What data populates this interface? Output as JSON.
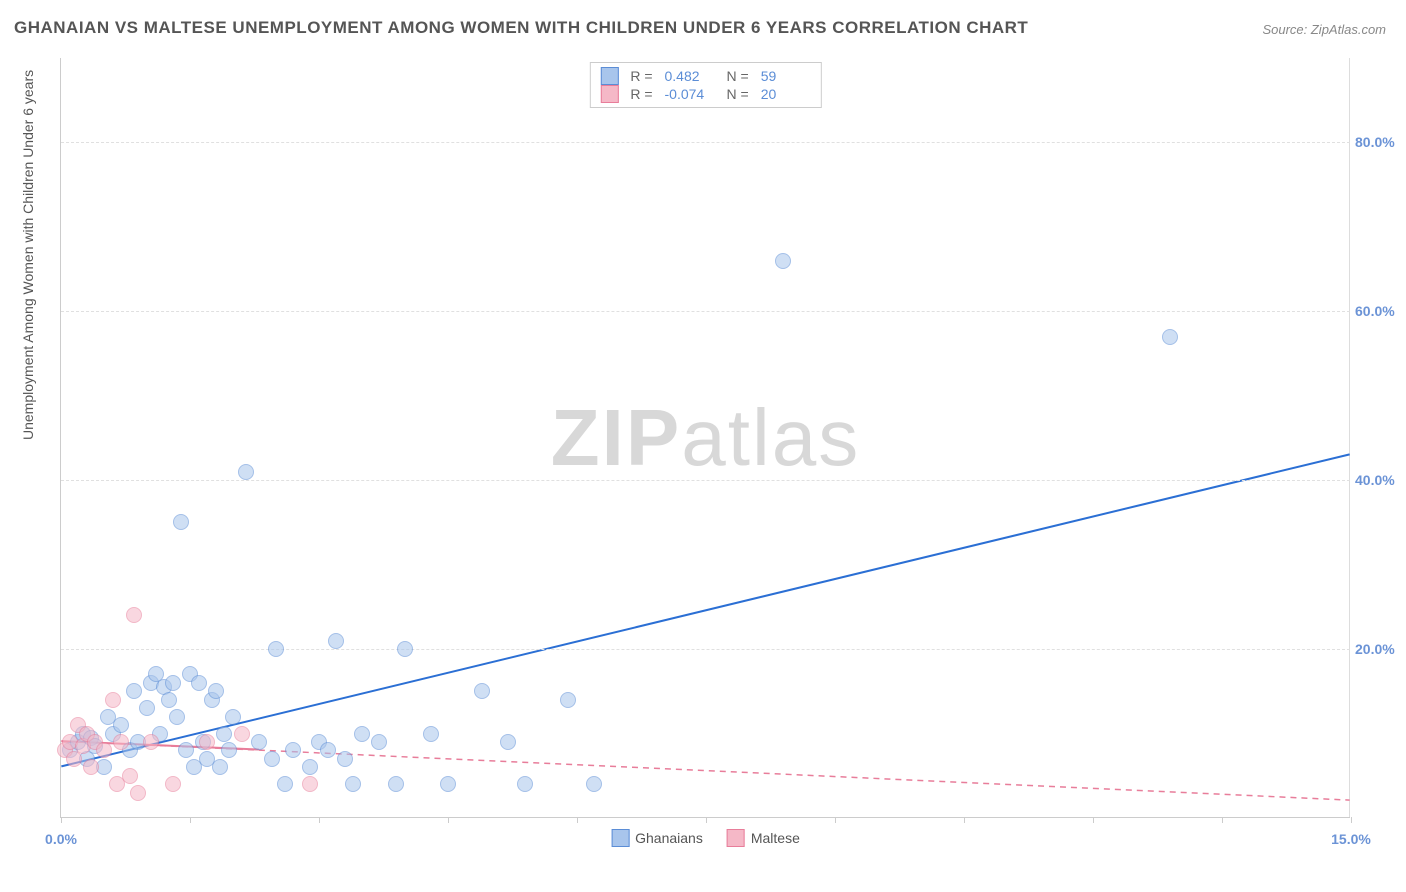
{
  "title": "GHANAIAN VS MALTESE UNEMPLOYMENT AMONG WOMEN WITH CHILDREN UNDER 6 YEARS CORRELATION CHART",
  "source": "Source: ZipAtlas.com",
  "y_axis_label": "Unemployment Among Women with Children Under 6 years",
  "watermark_bold": "ZIP",
  "watermark_light": "atlas",
  "chart": {
    "type": "scatter",
    "xlim": [
      0,
      15
    ],
    "ylim": [
      0,
      90
    ],
    "x_ticks": [
      0,
      1.5,
      3,
      4.5,
      6,
      7.5,
      9,
      10.5,
      12,
      13.5,
      15
    ],
    "x_tick_labels": {
      "0": "0.0%",
      "15": "15.0%"
    },
    "y_ticks": [
      20,
      40,
      60,
      80
    ],
    "y_tick_labels": {
      "20": "20.0%",
      "40": "40.0%",
      "60": "60.0%",
      "80": "80.0%"
    },
    "background_color": "#ffffff",
    "grid_color": "#e0e0e0",
    "axis_color": "#cccccc",
    "tick_label_color": "#6b93d6",
    "point_radius": 8,
    "point_opacity": 0.55,
    "series": [
      {
        "name": "Ghanaians",
        "fill": "#a8c5ec",
        "stroke": "#5b8dd6",
        "R": "0.482",
        "N": "59",
        "trend": {
          "x1": 0,
          "y1": 6,
          "x2": 15,
          "y2": 43,
          "color": "#2b6fd4",
          "width": 2,
          "dash": "none"
        },
        "points": [
          [
            0.1,
            8
          ],
          [
            0.2,
            9
          ],
          [
            0.25,
            10
          ],
          [
            0.3,
            7
          ],
          [
            0.35,
            9.5
          ],
          [
            0.4,
            8.5
          ],
          [
            0.5,
            6
          ],
          [
            0.55,
            12
          ],
          [
            0.6,
            10
          ],
          [
            0.7,
            11
          ],
          [
            0.8,
            8
          ],
          [
            0.85,
            15
          ],
          [
            0.9,
            9
          ],
          [
            1.0,
            13
          ],
          [
            1.05,
            16
          ],
          [
            1.1,
            17
          ],
          [
            1.15,
            10
          ],
          [
            1.2,
            15.5
          ],
          [
            1.25,
            14
          ],
          [
            1.3,
            16
          ],
          [
            1.35,
            12
          ],
          [
            1.4,
            35
          ],
          [
            1.45,
            8
          ],
          [
            1.5,
            17
          ],
          [
            1.55,
            6
          ],
          [
            1.6,
            16
          ],
          [
            1.65,
            9
          ],
          [
            1.7,
            7
          ],
          [
            1.75,
            14
          ],
          [
            1.8,
            15
          ],
          [
            1.85,
            6
          ],
          [
            1.9,
            10
          ],
          [
            1.95,
            8
          ],
          [
            2.0,
            12
          ],
          [
            2.15,
            41
          ],
          [
            2.3,
            9
          ],
          [
            2.45,
            7
          ],
          [
            2.5,
            20
          ],
          [
            2.6,
            4
          ],
          [
            2.7,
            8
          ],
          [
            2.9,
            6
          ],
          [
            3.0,
            9
          ],
          [
            3.1,
            8
          ],
          [
            3.2,
            21
          ],
          [
            3.3,
            7
          ],
          [
            3.4,
            4
          ],
          [
            3.5,
            10
          ],
          [
            3.7,
            9
          ],
          [
            3.9,
            4
          ],
          [
            4.0,
            20
          ],
          [
            4.3,
            10
          ],
          [
            4.5,
            4
          ],
          [
            4.9,
            15
          ],
          [
            5.2,
            9
          ],
          [
            5.4,
            4
          ],
          [
            5.9,
            14
          ],
          [
            6.2,
            4
          ],
          [
            8.4,
            66
          ],
          [
            12.9,
            57
          ]
        ]
      },
      {
        "name": "Maltese",
        "fill": "#f5b8c7",
        "stroke": "#e87d9a",
        "R": "-0.074",
        "N": "20",
        "trend": {
          "x1": 0,
          "y1": 9,
          "x2": 15,
          "y2": 2,
          "color": "#e87d9a",
          "width": 1.5,
          "dash": "6 5"
        },
        "trend_solid": {
          "x1": 0,
          "y1": 9,
          "x2": 2.3,
          "y2": 8,
          "color": "#e87d9a",
          "width": 2
        },
        "points": [
          [
            0.05,
            8
          ],
          [
            0.1,
            9
          ],
          [
            0.15,
            7
          ],
          [
            0.2,
            11
          ],
          [
            0.25,
            8.5
          ],
          [
            0.3,
            10
          ],
          [
            0.35,
            6
          ],
          [
            0.4,
            9
          ],
          [
            0.5,
            8
          ],
          [
            0.6,
            14
          ],
          [
            0.65,
            4
          ],
          [
            0.7,
            9
          ],
          [
            0.8,
            5
          ],
          [
            0.85,
            24
          ],
          [
            0.9,
            3
          ],
          [
            1.05,
            9
          ],
          [
            1.3,
            4
          ],
          [
            1.7,
            9
          ],
          [
            2.1,
            10
          ],
          [
            2.9,
            4
          ]
        ]
      }
    ]
  },
  "legend_corr": {
    "rows": [
      {
        "swatch_fill": "#a8c5ec",
        "swatch_stroke": "#5b8dd6",
        "r_label": "R =",
        "r_val": "0.482",
        "n_label": "N =",
        "n_val": "59"
      },
      {
        "swatch_fill": "#f5b8c7",
        "swatch_stroke": "#e87d9a",
        "r_label": "R =",
        "r_val": "-0.074",
        "n_label": "N =",
        "n_val": "20"
      }
    ]
  },
  "legend_bottom": [
    {
      "swatch_fill": "#a8c5ec",
      "swatch_stroke": "#5b8dd6",
      "label": "Ghanaians"
    },
    {
      "swatch_fill": "#f5b8c7",
      "swatch_stroke": "#e87d9a",
      "label": "Maltese"
    }
  ]
}
